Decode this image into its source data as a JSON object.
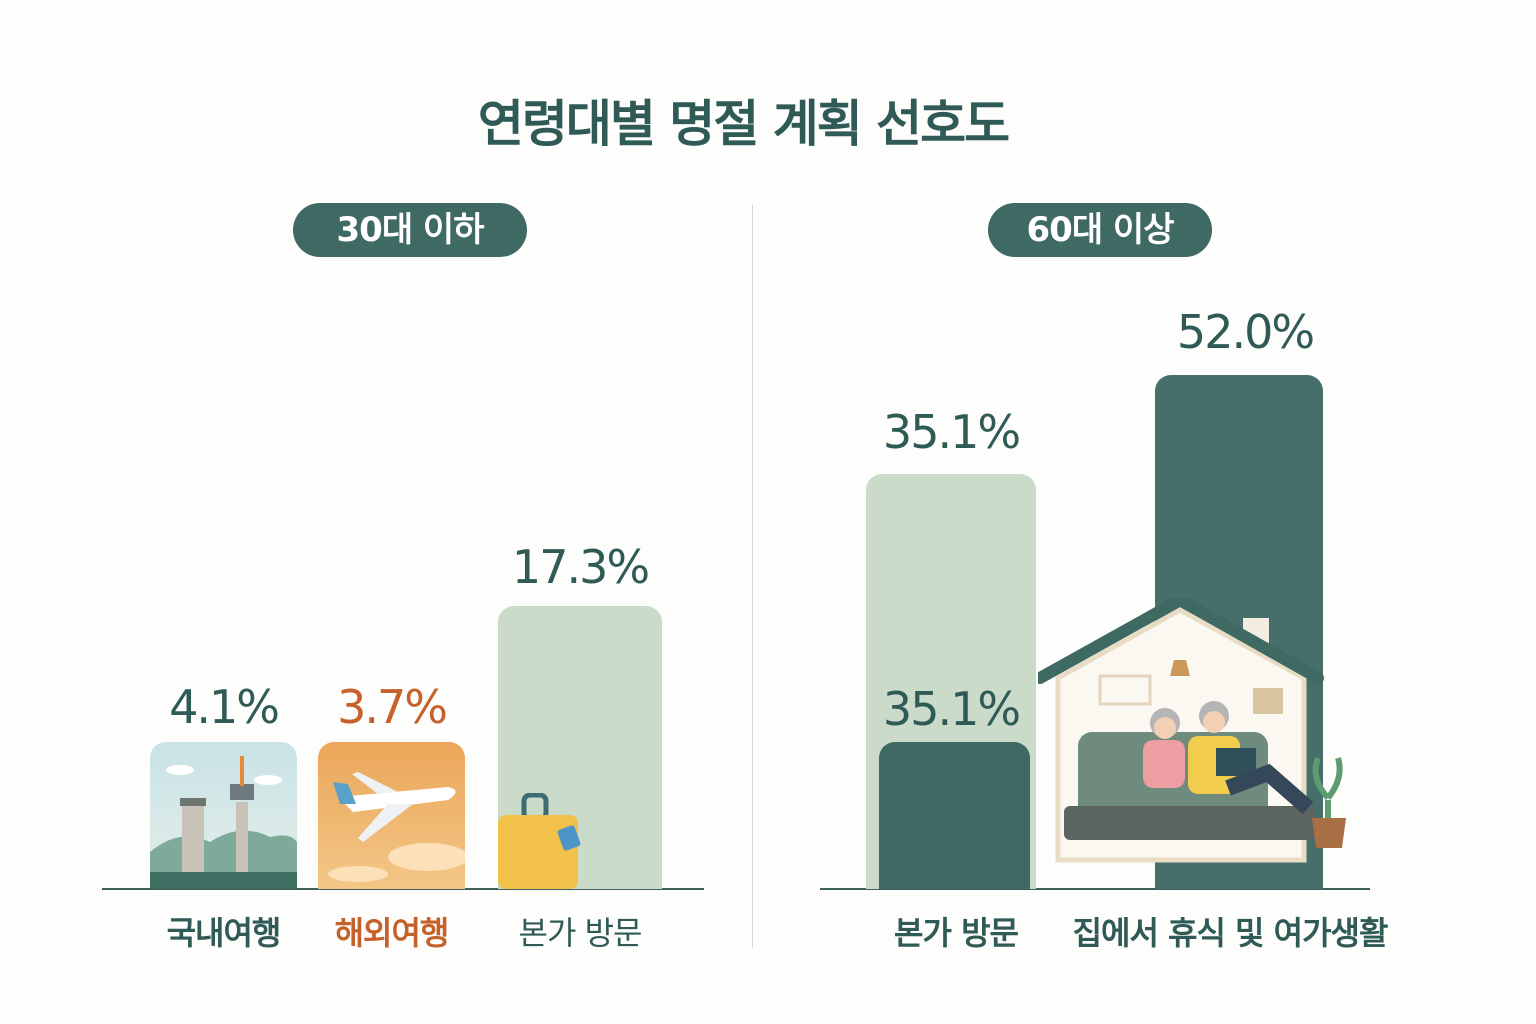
{
  "title": "연령대별 명절 계획 선호도",
  "colors": {
    "dark": "#466f6b",
    "light": "#cadbc9",
    "orange": "#c5622b",
    "text": "#2f5a55"
  },
  "chart_data": [
    {
      "type": "bar",
      "title": "30대 이하",
      "categories": [
        "국내여행",
        "해외여행",
        "본가 방문"
      ],
      "values": [
        4.1,
        3.7,
        17.3
      ],
      "labels": [
        "4.1%",
        "3.7%",
        "17.3%"
      ],
      "icons": [
        "namsan-tower-landscape-icon",
        "airplane-icon",
        "suitcase-icon"
      ]
    },
    {
      "type": "bar",
      "title": "60대 이상",
      "categories": [
        "본가 방문",
        "집에서 휴식 및 여가생활"
      ],
      "values": [
        35.1,
        52.0
      ],
      "labels": [
        "35.1%",
        "52.0%"
      ],
      "inner_label": "35.1%",
      "icons": [
        "house-couple-reading-icon"
      ]
    }
  ]
}
